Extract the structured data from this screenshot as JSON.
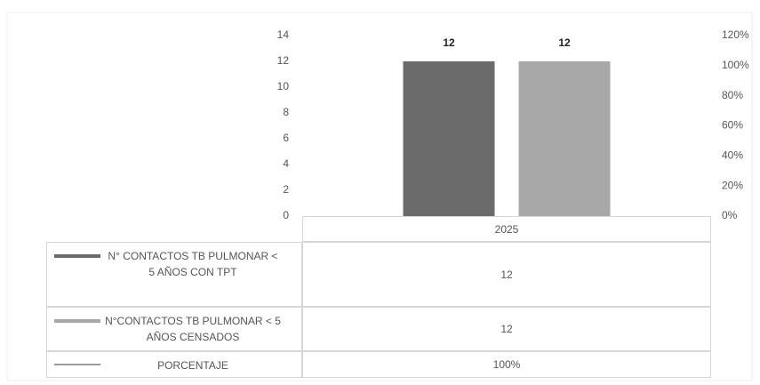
{
  "chart_data": {
    "type": "bar",
    "categories": [
      "2025"
    ],
    "series": [
      {
        "name": "N° CONTACTOS TB PULMONAR < 5 AÑOS CON TPT",
        "color": "#6b6b6b",
        "values": [
          12
        ]
      },
      {
        "name": "N°CONTACTOS TB PULMONAR < 5 AÑOS CENSADOS",
        "color": "#a8a8a8",
        "values": [
          12
        ]
      },
      {
        "name": "PORCENTAJE",
        "color": "#9a9a9a",
        "values": [
          100
        ],
        "value_labels": [
          "100%"
        ],
        "axis": "y2",
        "type": "line"
      }
    ],
    "ylim": [
      0,
      14
    ],
    "yticks": [
      0,
      2,
      4,
      6,
      8,
      10,
      12,
      14
    ],
    "y2lim": [
      0,
      120
    ],
    "y2ticks": [
      {
        "value": 0,
        "label": "0%"
      },
      {
        "value": 20,
        "label": "20%"
      },
      {
        "value": 40,
        "label": "40%"
      },
      {
        "value": 60,
        "label": "60%"
      },
      {
        "value": 80,
        "label": "80%"
      },
      {
        "value": 100,
        "label": "100%"
      },
      {
        "value": 120,
        "label": "120%"
      }
    ],
    "data_table": true
  }
}
